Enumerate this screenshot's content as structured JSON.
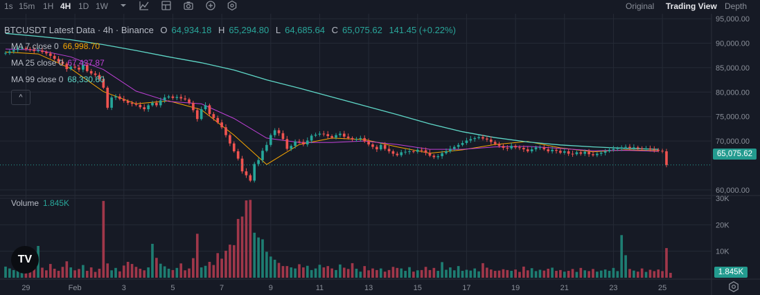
{
  "toolbar": {
    "timeframes": [
      "1s",
      "15m",
      "1H",
      "4H",
      "1D",
      "1W"
    ],
    "active_timeframe": "4H",
    "views": [
      "Original",
      "Trading View",
      "Depth"
    ],
    "active_view": "Trading View",
    "icons": [
      "chevron-down-icon",
      "indicator-icon",
      "layout-icon",
      "camera-icon",
      "plus-circle-icon",
      "settings-hex-icon"
    ]
  },
  "legend": {
    "title": "BTCUSDT Latest Data · 4h · Binance",
    "open_label": "O",
    "open": "64,934.18",
    "high_label": "H",
    "high": "65,294.80",
    "low_label": "L",
    "low": "64,685.64",
    "close_label": "C",
    "close": "65,075.62",
    "change": "141.45 (+0.22%)"
  },
  "ma": [
    {
      "label": "MA 7 close 0",
      "value": "66,998.70",
      "color": "#f7a600"
    },
    {
      "label": "MA 25 close 0",
      "value": "67,427.87",
      "color": "#c040d8"
    },
    {
      "label": "MA 99 close 0",
      "value": "68,330.60",
      "color": "#5fd8c8"
    }
  ],
  "volume_legend": {
    "label": "Volume",
    "value": "1.845K"
  },
  "logo_text": "TV",
  "collapse_glyph": "^",
  "price_axis_ticks": [
    "95,000.00",
    "90,000.00",
    "85,000.00",
    "80,000.00",
    "75,000.00",
    "70,000.00",
    "60,000.00"
  ],
  "volume_axis_ticks": [
    "30K",
    "20K",
    "10K"
  ],
  "time_axis_ticks": [
    "29",
    "Feb",
    "3",
    "5",
    "7",
    "9",
    "11",
    "13",
    "15",
    "17",
    "19",
    "21",
    "23",
    "25"
  ],
  "current_price_label": "65,075.62",
  "current_volume_label": "1.845K",
  "colors": {
    "background": "#161a25",
    "up": "#26a69a",
    "down": "#ef5350",
    "up_volume": "#1e7d72",
    "down_volume": "#a0374a",
    "grid": "#252a36",
    "axis_text": "#8a8f99"
  },
  "chart_data": {
    "type": "candlestick",
    "symbol": "BTCUSDT",
    "interval": "4h",
    "y_range": [
      59000,
      96000
    ],
    "volume_range": [
      0,
      30000
    ],
    "x_range": [
      0,
      162
    ],
    "series": [
      {
        "name": "MA 7 close 0",
        "x": [
          0,
          8,
          16,
          24,
          32,
          40,
          48,
          56,
          64,
          72,
          80,
          88,
          96,
          104,
          112,
          120,
          128,
          136,
          144,
          152,
          160
        ],
        "values": [
          88200,
          87800,
          84800,
          80100,
          77600,
          78200,
          76400,
          71200,
          65200,
          69300,
          70600,
          70300,
          68800,
          67500,
          68200,
          69300,
          69900,
          68600,
          67800,
          68200,
          68000
        ]
      },
      {
        "name": "MA 25 close 0",
        "x": [
          0,
          8,
          16,
          24,
          32,
          40,
          48,
          56,
          64,
          72,
          80,
          88,
          96,
          104,
          112,
          120,
          128,
          136,
          144,
          152,
          160
        ],
        "values": [
          88800,
          88600,
          87200,
          84600,
          80200,
          78100,
          77600,
          74600,
          70600,
          69700,
          69700,
          70000,
          69300,
          68300,
          68300,
          68800,
          68900,
          68500,
          68000,
          68100,
          67900
        ]
      },
      {
        "name": "MA 99 close 0",
        "x": [
          0,
          8,
          16,
          24,
          32,
          40,
          48,
          56,
          64,
          72,
          80,
          88,
          96,
          104,
          112,
          120,
          128,
          136,
          144,
          152,
          160
        ],
        "values": [
          92000,
          91400,
          90700,
          89700,
          88500,
          87200,
          86000,
          84500,
          82500,
          80800,
          79000,
          77200,
          75400,
          73500,
          71900,
          70700,
          69800,
          69200,
          68800,
          68500,
          68300
        ]
      }
    ],
    "candles_close": [
      88000,
      88300,
      88600,
      88900,
      89000,
      88800,
      88700,
      88400,
      88500,
      88200,
      87900,
      87400,
      86800,
      86200,
      85800,
      84700,
      85200,
      85000,
      84600,
      85600,
      84300,
      83800,
      83500,
      82700,
      80900,
      76800,
      78900,
      79100,
      78600,
      78200,
      77800,
      77600,
      77400,
      76900,
      76500,
      77300,
      77800,
      77300,
      78300,
      78900,
      79100,
      78800,
      79000,
      78700,
      78500,
      77800,
      76300,
      74500,
      76500,
      77300,
      75500,
      74700,
      73800,
      72800,
      71200,
      69500,
      67900,
      66400,
      63800,
      63000,
      61900,
      65300,
      66100,
      68000,
      69200,
      71200,
      72200,
      71600,
      70400,
      68400,
      69000,
      69900,
      69800,
      69300,
      70100,
      71100,
      71300,
      71500,
      71400,
      71000,
      70700,
      71200,
      71500,
      70900,
      70600,
      70300,
      70400,
      70600,
      69900,
      69300,
      68800,
      68300,
      69200,
      68400,
      67900,
      67400,
      67100,
      67700,
      67800,
      67900,
      67800,
      68200,
      68100,
      67600,
      67000,
      66700,
      66900,
      67500,
      67900,
      68400,
      68800,
      69200,
      69600,
      70100,
      70400,
      70600,
      70800,
      70500,
      70300,
      69800,
      69400,
      69000,
      68600,
      68500,
      69000,
      68700,
      68600,
      68300,
      67900,
      68300,
      68700,
      68700,
      68300,
      67900,
      68200,
      68000,
      67600,
      67900,
      67400,
      67300,
      67700,
      67400,
      67800,
      67300,
      67100,
      67400,
      67600,
      67900,
      68200,
      68400,
      68500,
      68700,
      68800,
      68600,
      68700,
      68500,
      68400,
      68500,
      68300,
      68200,
      68000,
      67900,
      65100
    ],
    "volume": [
      4200,
      3500,
      2900,
      3800,
      2600,
      3100,
      2400,
      4600,
      12000,
      3800,
      2800,
      5200,
      3400,
      2600,
      4100,
      6200,
      3900,
      2800,
      3300,
      4800,
      2600,
      3900,
      2200,
      3400,
      29000,
      5400,
      2800,
      3700,
      2400,
      4600,
      6000,
      5200,
      4100,
      3400,
      2800,
      3900,
      12800,
      7500,
      5300,
      4300,
      3400,
      2900,
      3700,
      5400,
      2800,
      3500,
      7400,
      16600,
      3900,
      4500,
      6000,
      4800,
      9300,
      7200,
      10200,
      12500,
      12300,
      22200,
      23100,
      29200,
      29400,
      17000,
      15200,
      14500,
      9800,
      8000,
      6800,
      5600,
      4400,
      4400,
      3900,
      3500,
      5100,
      3900,
      4500,
      2900,
      3500,
      4900,
      3900,
      4400,
      3500,
      2900,
      5000,
      3800,
      3300,
      5500,
      3400,
      2300,
      4400,
      2800,
      3500,
      2900,
      3500,
      2300,
      2900,
      4100,
      3700,
      3500,
      2600,
      4000,
      2300,
      2800,
      2900,
      4100,
      2900,
      3700,
      2600,
      5900,
      3000,
      3900,
      2800,
      4400,
      2600,
      3000,
      2700,
      3500,
      2400,
      5500,
      3800,
      3100,
      2600,
      2700,
      3200,
      2900,
      2600,
      3100,
      2200,
      4200,
      2800,
      3600,
      2500,
      3000,
      2700,
      3400,
      3800,
      2600,
      2900,
      2300,
      2600,
      3300,
      2200,
      3700,
      2800,
      2500,
      3300,
      2300,
      2700,
      3100,
      2600,
      3700,
      2500,
      16100,
      8500,
      3300,
      2700,
      2300,
      3500,
      2200,
      3000,
      2500,
      3100,
      2500,
      11200,
      1845
    ]
  }
}
